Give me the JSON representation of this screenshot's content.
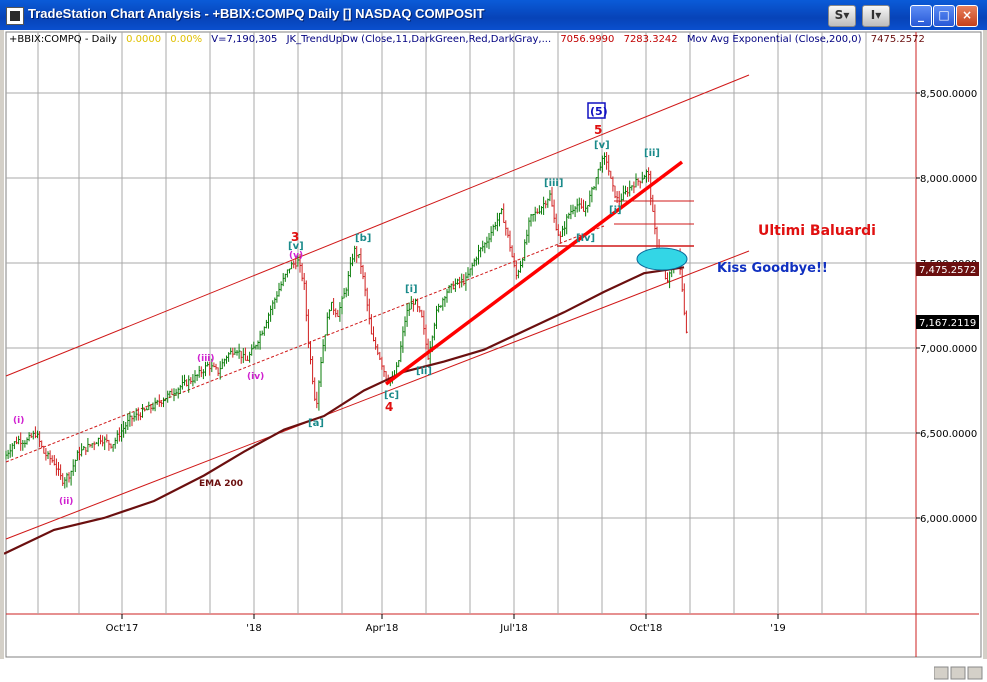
{
  "window": {
    "title": "TradeStation Chart Analysis  - +BBIX:COMPQ Daily [] NASDAQ COMPOSIT",
    "btn_s": "S",
    "btn_i": "I",
    "btn_min": "_",
    "btn_max": "□",
    "btn_close": "×"
  },
  "chart_data": {
    "type": "ohlc-bar",
    "header": {
      "symbol": "+BBIX:COMPQ - Daily",
      "v1": "0.0000",
      "v2": "0.00%",
      "volume": "V=7,190,305",
      "indicator": "JK_TrendUpDw (Close,11,DarkGreen,Red,DarkGray,...",
      "ind_v1": "7056.9990",
      "ind_v2": "7283.3242",
      "ema": "Mov Avg Exponential (Close,200,0)",
      "ema_value": "7475.2572"
    },
    "yaxis": {
      "min": 5500,
      "max": 8800,
      "ticks": [
        "8,500.0000",
        "8,000.0000",
        "7,500.0000",
        "7,000.0000",
        "6,500.0000",
        "6,000.0000"
      ],
      "tick_values": [
        8500,
        8000,
        7500,
        7000,
        6500,
        6000
      ]
    },
    "xaxis": {
      "ticks": [
        "Oct'17",
        "'18",
        "Apr'18",
        "Jul'18",
        "Oct'18",
        "'19"
      ]
    },
    "price_tags": {
      "ema": "7,475.2572",
      "last": "7,167.2119"
    },
    "ema_label": "EMA 200",
    "wave_labels": [
      "(i)",
      "(ii)",
      "(iii)",
      "(iv)",
      "(v)",
      "3",
      "[v]",
      "[a]",
      "[b]",
      "4",
      "[c]",
      "[i]",
      "[ii]",
      "[iii]",
      "[iv]",
      "5",
      "[v]",
      "(5)",
      "[ii]",
      "[i]"
    ],
    "annotations": {
      "ultimi": "Ultimi Baluardi",
      "kiss": "Kiss Goodbye!!"
    },
    "colors": {
      "up": "#0a7d0a",
      "down": "#d02020",
      "ema": "#6b0f0f",
      "channel": "#d01818",
      "trend": "#ff0000",
      "grid": "#a0a0a0"
    },
    "price_path": [
      [
        0,
        6350
      ],
      [
        8,
        6430
      ],
      [
        14,
        6460
      ],
      [
        22,
        6450
      ],
      [
        32,
        6500
      ],
      [
        40,
        6380
      ],
      [
        50,
        6330
      ],
      [
        58,
        6220
      ],
      [
        66,
        6260
      ],
      [
        74,
        6380
      ],
      [
        84,
        6420
      ],
      [
        96,
        6470
      ],
      [
        108,
        6430
      ],
      [
        116,
        6500
      ],
      [
        126,
        6580
      ],
      [
        138,
        6620
      ],
      [
        150,
        6660
      ],
      [
        164,
        6720
      ],
      [
        178,
        6780
      ],
      [
        192,
        6830
      ],
      [
        204,
        6900
      ],
      [
        214,
        6860
      ],
      [
        222,
        6950
      ],
      [
        232,
        7000
      ],
      [
        242,
        6920
      ],
      [
        250,
        7000
      ],
      [
        258,
        7100
      ],
      [
        266,
        7220
      ],
      [
        276,
        7360
      ],
      [
        286,
        7480
      ],
      [
        294,
        7510
      ],
      [
        300,
        7380
      ],
      [
        304,
        7060
      ],
      [
        308,
        6850
      ],
      [
        312,
        6650
      ],
      [
        318,
        6980
      ],
      [
        326,
        7260
      ],
      [
        334,
        7200
      ],
      [
        342,
        7350
      ],
      [
        350,
        7580
      ],
      [
        356,
        7520
      ],
      [
        362,
        7300
      ],
      [
        368,
        7050
      ],
      [
        374,
        6980
      ],
      [
        382,
        6830
      ],
      [
        388,
        6800
      ],
      [
        394,
        6900
      ],
      [
        402,
        7200
      ],
      [
        410,
        7280
      ],
      [
        418,
        7170
      ],
      [
        424,
        6950
      ],
      [
        432,
        7200
      ],
      [
        442,
        7330
      ],
      [
        452,
        7380
      ],
      [
        462,
        7400
      ],
      [
        474,
        7560
      ],
      [
        482,
        7620
      ],
      [
        490,
        7720
      ],
      [
        498,
        7800
      ],
      [
        506,
        7600
      ],
      [
        512,
        7420
      ],
      [
        518,
        7520
      ],
      [
        526,
        7760
      ],
      [
        536,
        7820
      ],
      [
        546,
        7900
      ],
      [
        550,
        7760
      ],
      [
        556,
        7640
      ],
      [
        564,
        7780
      ],
      [
        572,
        7850
      ],
      [
        580,
        7800
      ],
      [
        588,
        7920
      ],
      [
        596,
        8080
      ],
      [
        602,
        8120
      ],
      [
        608,
        7950
      ],
      [
        614,
        7860
      ],
      [
        620,
        7900
      ],
      [
        628,
        7960
      ],
      [
        636,
        7990
      ],
      [
        644,
        8040
      ],
      [
        650,
        7720
      ],
      [
        654,
        7580
      ],
      [
        658,
        7500
      ],
      [
        662,
        7380
      ],
      [
        666,
        7430
      ],
      [
        670,
        7480
      ],
      [
        674,
        7560
      ],
      [
        678,
        7350
      ],
      [
        682,
        7120
      ],
      [
        684,
        7080
      ]
    ],
    "ema_path": [
      [
        0,
        5790
      ],
      [
        50,
        5930
      ],
      [
        100,
        6000
      ],
      [
        150,
        6100
      ],
      [
        200,
        6250
      ],
      [
        240,
        6390
      ],
      [
        280,
        6520
      ],
      [
        320,
        6600
      ],
      [
        360,
        6750
      ],
      [
        400,
        6860
      ],
      [
        440,
        6920
      ],
      [
        480,
        6990
      ],
      [
        520,
        7100
      ],
      [
        560,
        7210
      ],
      [
        600,
        7330
      ],
      [
        640,
        7440
      ],
      [
        680,
        7475
      ]
    ]
  }
}
